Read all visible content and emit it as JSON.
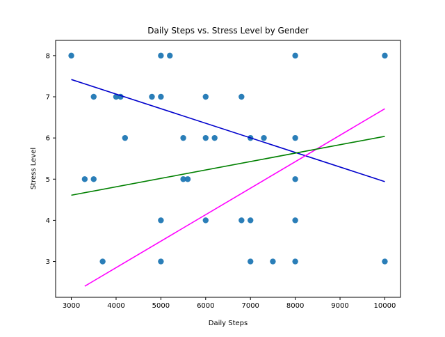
{
  "chart_data": {
    "type": "scatter",
    "title": "Daily Steps vs. Stress Level by Gender",
    "xlabel": "Daily Steps",
    "ylabel": "Stress Level",
    "xlim": [
      2650,
      10350
    ],
    "ylim": [
      2.13,
      8.37
    ],
    "xticks": [
      3000,
      4000,
      5000,
      6000,
      7000,
      8000,
      9000,
      10000
    ],
    "yticks": [
      3,
      4,
      5,
      6,
      7,
      8
    ],
    "grid": false,
    "legend": "none",
    "point_color": "#1f77b4",
    "points": [
      {
        "x": 3000,
        "y": 8
      },
      {
        "x": 5000,
        "y": 8
      },
      {
        "x": 5200,
        "y": 8
      },
      {
        "x": 8000,
        "y": 8
      },
      {
        "x": 10000,
        "y": 8
      },
      {
        "x": 3500,
        "y": 7
      },
      {
        "x": 4000,
        "y": 7
      },
      {
        "x": 4100,
        "y": 7
      },
      {
        "x": 4800,
        "y": 7
      },
      {
        "x": 5000,
        "y": 7
      },
      {
        "x": 6000,
        "y": 7
      },
      {
        "x": 6800,
        "y": 7
      },
      {
        "x": 4200,
        "y": 6
      },
      {
        "x": 5500,
        "y": 6
      },
      {
        "x": 6000,
        "y": 6
      },
      {
        "x": 6200,
        "y": 6
      },
      {
        "x": 7000,
        "y": 6
      },
      {
        "x": 7300,
        "y": 6
      },
      {
        "x": 8000,
        "y": 6
      },
      {
        "x": 3300,
        "y": 5
      },
      {
        "x": 3500,
        "y": 5
      },
      {
        "x": 5500,
        "y": 5
      },
      {
        "x": 5600,
        "y": 5
      },
      {
        "x": 8000,
        "y": 5
      },
      {
        "x": 5000,
        "y": 4
      },
      {
        "x": 6000,
        "y": 4
      },
      {
        "x": 6800,
        "y": 4
      },
      {
        "x": 7000,
        "y": 4
      },
      {
        "x": 8000,
        "y": 4
      },
      {
        "x": 3700,
        "y": 3
      },
      {
        "x": 5000,
        "y": 3
      },
      {
        "x": 7000,
        "y": 3
      },
      {
        "x": 7500,
        "y": 3
      },
      {
        "x": 8000,
        "y": 3
      },
      {
        "x": 10000,
        "y": 3
      }
    ],
    "trend_lines": [
      {
        "color": "#0000cc",
        "x": [
          3000,
          10000
        ],
        "y": [
          7.42,
          4.94
        ]
      },
      {
        "color": "#ff00ff",
        "x": [
          3300,
          10000
        ],
        "y": [
          2.4,
          6.71
        ]
      },
      {
        "color": "#008000",
        "x": [
          3000,
          10000
        ],
        "y": [
          4.61,
          6.04
        ]
      }
    ]
  }
}
